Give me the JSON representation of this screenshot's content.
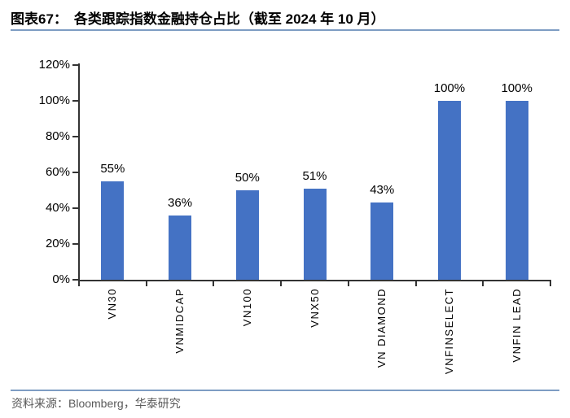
{
  "header": {
    "figure_label": "图表67：",
    "title": "各类跟踪指数金融持仓占比（截至 2024 年 10 月）"
  },
  "footer": {
    "source": "资料来源：Bloomberg，华泰研究"
  },
  "colors": {
    "bar": "#4472C4",
    "separator": "#7E9DC3",
    "axis": "#333333",
    "source_text": "#595959"
  },
  "chart_data": {
    "type": "bar",
    "title": "各类跟踪指数金融持仓占比（截至 2024 年 10 月）",
    "categories": [
      "VN30",
      "VNMIDCAP",
      "VN100",
      "VNX50",
      "VN DIAMOND",
      "VNFINSELECT",
      "VNFIN LEAD"
    ],
    "values": [
      55,
      36,
      50,
      51,
      43,
      100,
      100
    ],
    "value_labels": [
      "55%",
      "36%",
      "50%",
      "51%",
      "43%",
      "100%",
      "100%"
    ],
    "yticks": [
      0,
      20,
      40,
      60,
      80,
      100,
      120
    ],
    "ytick_labels": [
      "0%",
      "20%",
      "40%",
      "60%",
      "80%",
      "100%",
      "120%"
    ],
    "ylim": [
      0,
      120
    ],
    "xlabel": "",
    "ylabel": "",
    "grid": false,
    "legend": null,
    "bar_color": "#4472C4"
  }
}
